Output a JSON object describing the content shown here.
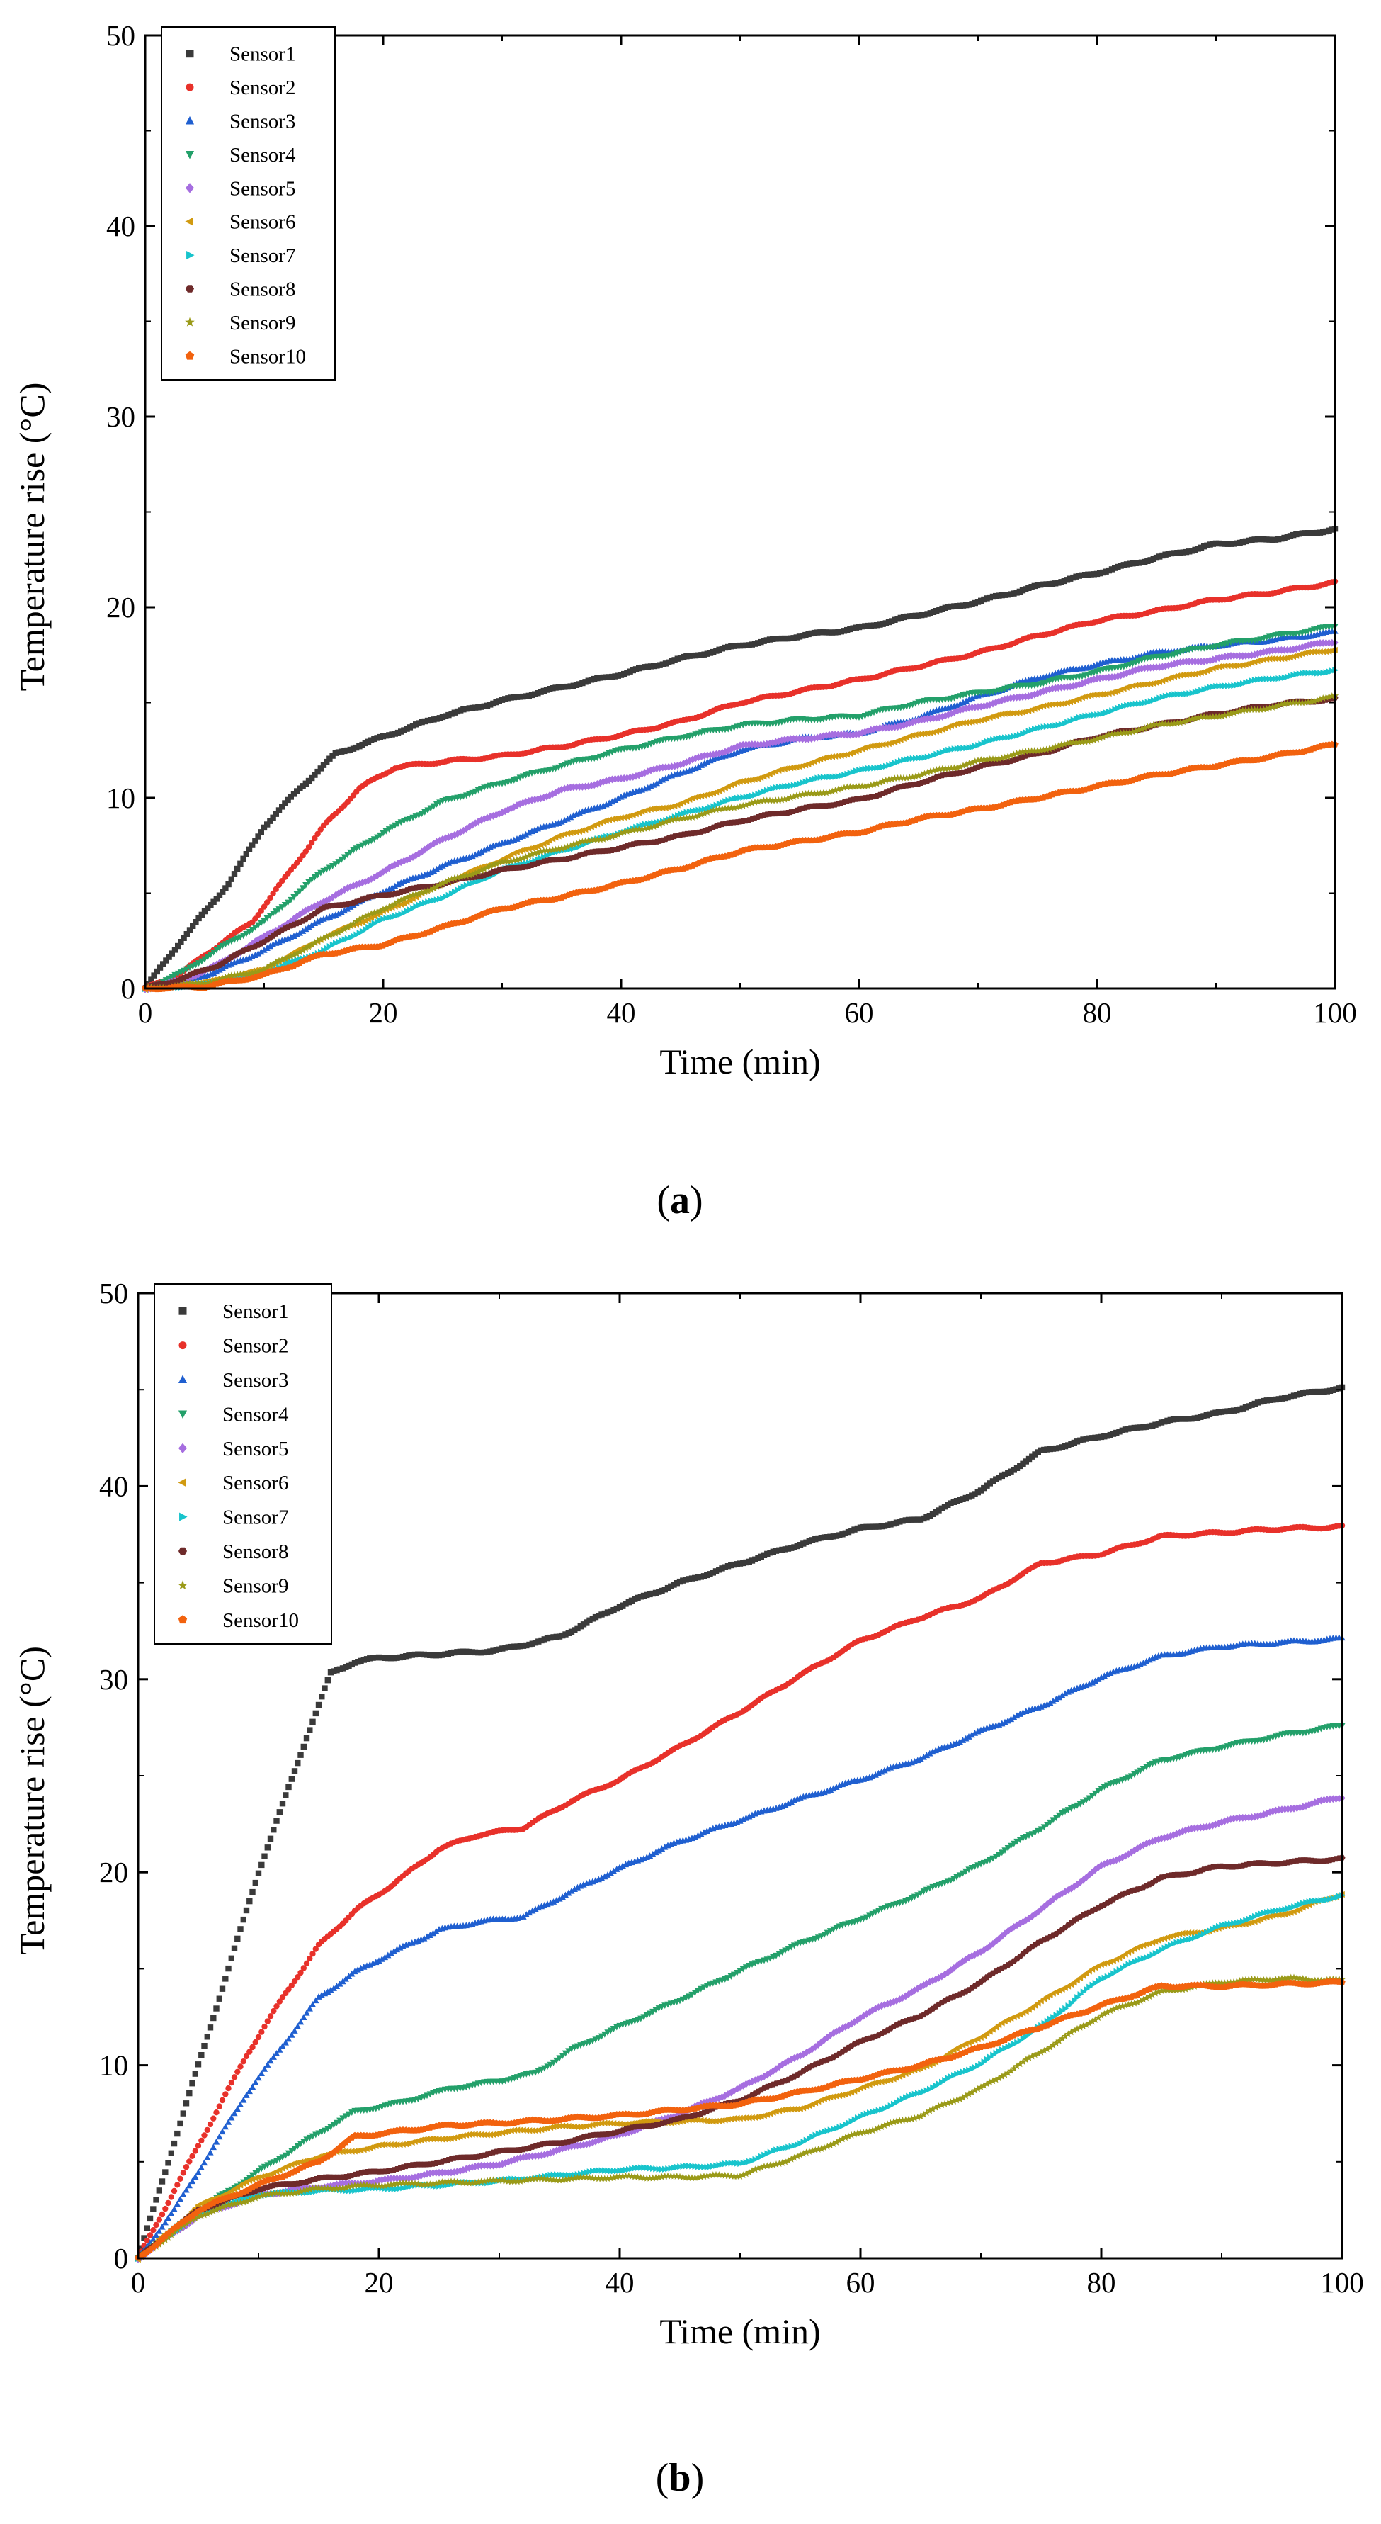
{
  "colors": {
    "Sensor1": "#3a3a3a",
    "Sensor2": "#e8312a",
    "Sensor3": "#1f5fd0",
    "Sensor4": "#23a06a",
    "Sensor5": "#a66ee0",
    "Sensor6": "#d19a10",
    "Sensor7": "#18c4cc",
    "Sensor8": "#6e2a2a",
    "Sensor9": "#9a9a18",
    "Sensor10": "#f2620e"
  },
  "markers": {
    "Sensor1": "square",
    "Sensor2": "circle",
    "Sensor3": "triangle-up",
    "Sensor4": "triangle-down",
    "Sensor5": "diamond",
    "Sensor6": "triangle-left",
    "Sensor7": "triangle-right",
    "Sensor8": "hexagon",
    "Sensor9": "star",
    "Sensor10": "pentagon"
  },
  "chart_data": [
    {
      "type": "scatter",
      "panel_label_open": "(",
      "panel_label": "a",
      "panel_label_close": ")",
      "xlabel": "Time (min)",
      "ylabel": "Temperature rise (°C)",
      "xlim": [
        0,
        100
      ],
      "ylim": [
        0,
        50
      ],
      "xticks": [
        "0",
        "20",
        "40",
        "60",
        "80",
        "100"
      ],
      "yticks": [
        "0",
        "10",
        "20",
        "30",
        "40",
        "50"
      ],
      "legend_position": "top-left",
      "series": [
        {
          "name": "Sensor1",
          "x": [
            0,
            3,
            7,
            10,
            13,
            16,
            20,
            25,
            30,
            35,
            40,
            45,
            50,
            55,
            60,
            65,
            70,
            75,
            80,
            85,
            90,
            95,
            100
          ],
          "y": [
            0,
            2.5,
            5.5,
            8.5,
            10.5,
            12.3,
            13.2,
            14.3,
            15.1,
            15.8,
            16.5,
            17.3,
            18,
            18.5,
            18.9,
            19.6,
            20.3,
            21.1,
            21.8,
            22.6,
            23.3,
            23.6,
            24.1
          ]
        },
        {
          "name": "Sensor2",
          "x": [
            0,
            3,
            6,
            9,
            12,
            15,
            18,
            21,
            25,
            30,
            35,
            40,
            45,
            50,
            55,
            60,
            65,
            70,
            75,
            80,
            85,
            90,
            95,
            100
          ],
          "y": [
            0,
            0.8,
            2.2,
            3.5,
            6,
            8.5,
            10.5,
            11.6,
            11.9,
            12.2,
            12.7,
            13.3,
            14,
            15,
            15.6,
            16.2,
            16.9,
            17.6,
            18.5,
            19.3,
            19.8,
            20.4,
            20.8,
            21.3
          ]
        },
        {
          "name": "Sensor3",
          "x": [
            0,
            3,
            6,
            10,
            15,
            20,
            25,
            30,
            35,
            40,
            45,
            50,
            55,
            60,
            65,
            70,
            75,
            80,
            85,
            90,
            95,
            100
          ],
          "y": [
            0,
            0.3,
            0.9,
            2,
            3.6,
            5.1,
            6.4,
            7.6,
            8.8,
            10,
            11.3,
            12.5,
            13.1,
            13.4,
            14.2,
            15.3,
            16.3,
            17,
            17.6,
            18,
            18.3,
            18.7
          ]
        },
        {
          "name": "Sensor4",
          "x": [
            0,
            3,
            6,
            10,
            15,
            20,
            25,
            30,
            35,
            40,
            45,
            50,
            55,
            60,
            65,
            70,
            75,
            80,
            85,
            90,
            95,
            100
          ],
          "y": [
            0,
            0.8,
            2,
            3.5,
            6.2,
            8.2,
            9.8,
            10.8,
            11.7,
            12.5,
            13.2,
            13.8,
            14.1,
            14.3,
            15,
            15.5,
            16,
            16.6,
            17.4,
            18,
            18.5,
            19
          ]
        },
        {
          "name": "Sensor5",
          "x": [
            0,
            3,
            6,
            10,
            15,
            20,
            25,
            30,
            35,
            40,
            45,
            50,
            55,
            60,
            65,
            70,
            75,
            80,
            85,
            90,
            95,
            100
          ],
          "y": [
            0,
            0.4,
            1.2,
            2.7,
            4.6,
            6.1,
            7.8,
            9.3,
            10.4,
            11,
            11.8,
            12.7,
            13.1,
            13.4,
            14,
            14.8,
            15.5,
            16.2,
            16.9,
            17.3,
            17.7,
            18.2
          ]
        },
        {
          "name": "Sensor6",
          "x": [
            0,
            5,
            10,
            15,
            20,
            25,
            30,
            35,
            40,
            45,
            50,
            55,
            60,
            65,
            70,
            75,
            80,
            85,
            90,
            95,
            100
          ],
          "y": [
            0,
            0.3,
            1,
            2.7,
            4,
            5.5,
            6.8,
            8,
            9,
            9.7,
            10.8,
            11.7,
            12.5,
            13.3,
            14.1,
            14.7,
            15.4,
            16.1,
            16.8,
            17.3,
            17.8
          ]
        },
        {
          "name": "Sensor7",
          "x": [
            0,
            5,
            10,
            15,
            20,
            25,
            30,
            35,
            40,
            45,
            50,
            55,
            60,
            65,
            70,
            75,
            80,
            85,
            90,
            95,
            100
          ],
          "y": [
            0,
            0.2,
            0.8,
            2,
            3.6,
            4.8,
            6.2,
            7.2,
            8.2,
            9.1,
            10,
            10.8,
            11.4,
            12.1,
            12.8,
            13.6,
            14.4,
            15.2,
            15.8,
            16.3,
            16.7
          ]
        },
        {
          "name": "Sensor8",
          "x": [
            0,
            3,
            6,
            10,
            15,
            20,
            25,
            30,
            35,
            40,
            45,
            50,
            55,
            60,
            65,
            70,
            75,
            80,
            85,
            90,
            95,
            100
          ],
          "y": [
            0,
            0.5,
            1.2,
            2.5,
            4.2,
            4.9,
            5.5,
            6.2,
            6.8,
            7.4,
            8,
            8.8,
            9.4,
            9.9,
            10.8,
            11.6,
            12.3,
            13.2,
            13.8,
            14.4,
            14.9,
            15.2
          ]
        },
        {
          "name": "Sensor9",
          "x": [
            0,
            5,
            10,
            15,
            20,
            25,
            30,
            35,
            40,
            45,
            50,
            55,
            60,
            65,
            70,
            75,
            80,
            85,
            90,
            95,
            100
          ],
          "y": [
            0,
            0.3,
            1,
            2.6,
            4.2,
            5.5,
            6.6,
            7.4,
            8.1,
            8.9,
            9.6,
            10.1,
            10.6,
            11.2,
            11.9,
            12.5,
            13.1,
            13.8,
            14.3,
            14.8,
            15.3
          ]
        },
        {
          "name": "Sensor10",
          "x": [
            0,
            5,
            10,
            15,
            20,
            25,
            30,
            35,
            40,
            45,
            50,
            55,
            60,
            65,
            70,
            75,
            80,
            85,
            90,
            95,
            100
          ],
          "y": [
            0,
            0.1,
            0.7,
            1.8,
            2.3,
            3.2,
            4.2,
            4.8,
            5.5,
            6.3,
            7.2,
            7.7,
            8.2,
            8.9,
            9.4,
            10,
            10.6,
            11.2,
            11.7,
            12.2,
            12.8
          ]
        }
      ]
    },
    {
      "type": "scatter",
      "panel_label_open": "(",
      "panel_label": "b",
      "panel_label_close": ")",
      "xlabel": "Time (min)",
      "ylabel": "Temperature rise (°C)",
      "xlim": [
        0,
        100
      ],
      "ylim": [
        0,
        50
      ],
      "xticks": [
        "0",
        "20",
        "40",
        "60",
        "80",
        "100"
      ],
      "yticks": [
        "0",
        "10",
        "20",
        "30",
        "40",
        "50"
      ],
      "legend_position": "top-left",
      "series": [
        {
          "name": "Sensor1",
          "x": [
            0,
            2,
            4,
            6,
            8,
            10,
            12,
            14,
            16,
            18,
            20,
            25,
            30,
            35,
            40,
            45,
            50,
            55,
            60,
            65,
            70,
            75,
            80,
            85,
            90,
            95,
            100
          ],
          "y": [
            0,
            4,
            8,
            12,
            16,
            20,
            23.5,
            27,
            30.3,
            30.9,
            31.1,
            31.3,
            31.5,
            32.2,
            33.8,
            35,
            36,
            37,
            37.8,
            38.3,
            39.8,
            41.8,
            42.6,
            43.3,
            43.8,
            44.6,
            45.1
          ]
        },
        {
          "name": "Sensor2",
          "x": [
            0,
            3,
            6,
            9,
            12,
            15,
            18,
            21,
            25,
            28,
            32,
            36,
            40,
            45,
            50,
            55,
            60,
            65,
            70,
            75,
            80,
            85,
            90,
            95,
            100
          ],
          "y": [
            0,
            3.5,
            7,
            10.5,
            13.5,
            16.2,
            18,
            19.3,
            21.2,
            21.9,
            22.3,
            23.7,
            24.8,
            26.5,
            28.3,
            30.2,
            32,
            33.2,
            34.2,
            36,
            36.5,
            37.4,
            37.6,
            37.8,
            37.9
          ]
        },
        {
          "name": "Sensor3",
          "x": [
            0,
            3,
            6,
            9,
            12,
            15,
            18,
            21,
            25,
            28,
            32,
            36,
            40,
            45,
            50,
            55,
            60,
            65,
            70,
            75,
            80,
            85,
            90,
            95,
            100
          ],
          "y": [
            0,
            2.5,
            5.5,
            8.5,
            11,
            13.5,
            14.8,
            15.8,
            17,
            17.4,
            17.7,
            19,
            20.2,
            21.6,
            22.7,
            23.8,
            24.8,
            25.9,
            27.3,
            28.6,
            30.1,
            31.2,
            31.7,
            31.9,
            32.1
          ]
        },
        {
          "name": "Sensor4",
          "x": [
            0,
            5,
            10,
            15,
            18,
            22,
            26,
            30,
            33,
            36,
            40,
            45,
            50,
            55,
            60,
            65,
            70,
            75,
            80,
            85,
            90,
            95,
            100
          ],
          "y": [
            0,
            2.5,
            4.5,
            6.5,
            7.6,
            8.1,
            8.8,
            9.2,
            9.6,
            10.8,
            12,
            13.4,
            14.9,
            16.3,
            17.6,
            18.9,
            20.4,
            22.3,
            24.3,
            25.8,
            26.5,
            27.1,
            27.6
          ]
        },
        {
          "name": "Sensor5",
          "x": [
            0,
            5,
            10,
            15,
            20,
            25,
            30,
            35,
            40,
            45,
            50,
            55,
            60,
            65,
            70,
            75,
            80,
            85,
            90,
            95,
            100
          ],
          "y": [
            0,
            2.2,
            3.3,
            3.7,
            4,
            4.4,
            4.9,
            5.6,
            6.4,
            7.5,
            8.8,
            10.5,
            12.5,
            14,
            15.9,
            18.1,
            20.3,
            21.8,
            22.6,
            23.2,
            23.9
          ]
        },
        {
          "name": "Sensor6",
          "x": [
            0,
            5,
            10,
            15,
            20,
            25,
            30,
            35,
            40,
            45,
            50,
            55,
            60,
            65,
            70,
            75,
            80,
            85,
            90,
            95,
            100
          ],
          "y": [
            0,
            2.7,
            4.2,
            5.3,
            5.8,
            6.2,
            6.5,
            6.8,
            7,
            7.1,
            7.2,
            7.8,
            8.8,
            9.8,
            11.5,
            13.3,
            15.2,
            16.6,
            17.1,
            17.8,
            18.9
          ]
        },
        {
          "name": "Sensor7",
          "x": [
            0,
            5,
            10,
            15,
            20,
            25,
            30,
            35,
            40,
            45,
            50,
            55,
            60,
            65,
            70,
            75,
            80,
            85,
            90,
            95,
            100
          ],
          "y": [
            0,
            2.3,
            3.3,
            3.5,
            3.6,
            3.8,
            4,
            4.3,
            4.6,
            4.7,
            4.9,
            6,
            7.3,
            8.6,
            10.1,
            12,
            14.5,
            16,
            17.2,
            18.1,
            18.8
          ]
        },
        {
          "name": "Sensor8",
          "x": [
            0,
            5,
            10,
            15,
            20,
            25,
            30,
            35,
            40,
            45,
            50,
            55,
            60,
            65,
            70,
            75,
            80,
            85,
            90,
            95,
            100
          ],
          "y": [
            0,
            2.5,
            3.6,
            4.1,
            4.5,
            5,
            5.5,
            6,
            6.6,
            7.2,
            8.2,
            9.6,
            11.2,
            12.6,
            14.3,
            16.4,
            18.3,
            19.7,
            20.3,
            20.5,
            20.7
          ]
        },
        {
          "name": "Sensor9",
          "x": [
            0,
            5,
            10,
            15,
            20,
            25,
            30,
            35,
            40,
            45,
            50,
            55,
            60,
            65,
            70,
            75,
            80,
            85,
            90,
            95,
            100
          ],
          "y": [
            0,
            2.2,
            3.2,
            3.6,
            3.8,
            3.9,
            4,
            4.1,
            4.2,
            4.2,
            4.3,
            5.3,
            6.5,
            7.4,
            8.8,
            10.7,
            12.6,
            13.8,
            14.3,
            14.5,
            14.4
          ]
        },
        {
          "name": "Sensor10",
          "x": [
            0,
            5,
            10,
            15,
            18,
            22,
            26,
            30,
            35,
            40,
            45,
            50,
            55,
            60,
            65,
            70,
            75,
            80,
            85,
            90,
            95,
            100
          ],
          "y": [
            0,
            2.5,
            3.8,
            5,
            6.3,
            6.6,
            6.9,
            7,
            7.2,
            7.4,
            7.7,
            8,
            8.6,
            9.3,
            10,
            10.9,
            12,
            13.1,
            14.1,
            14.1,
            14.2,
            14.3
          ]
        }
      ]
    }
  ]
}
